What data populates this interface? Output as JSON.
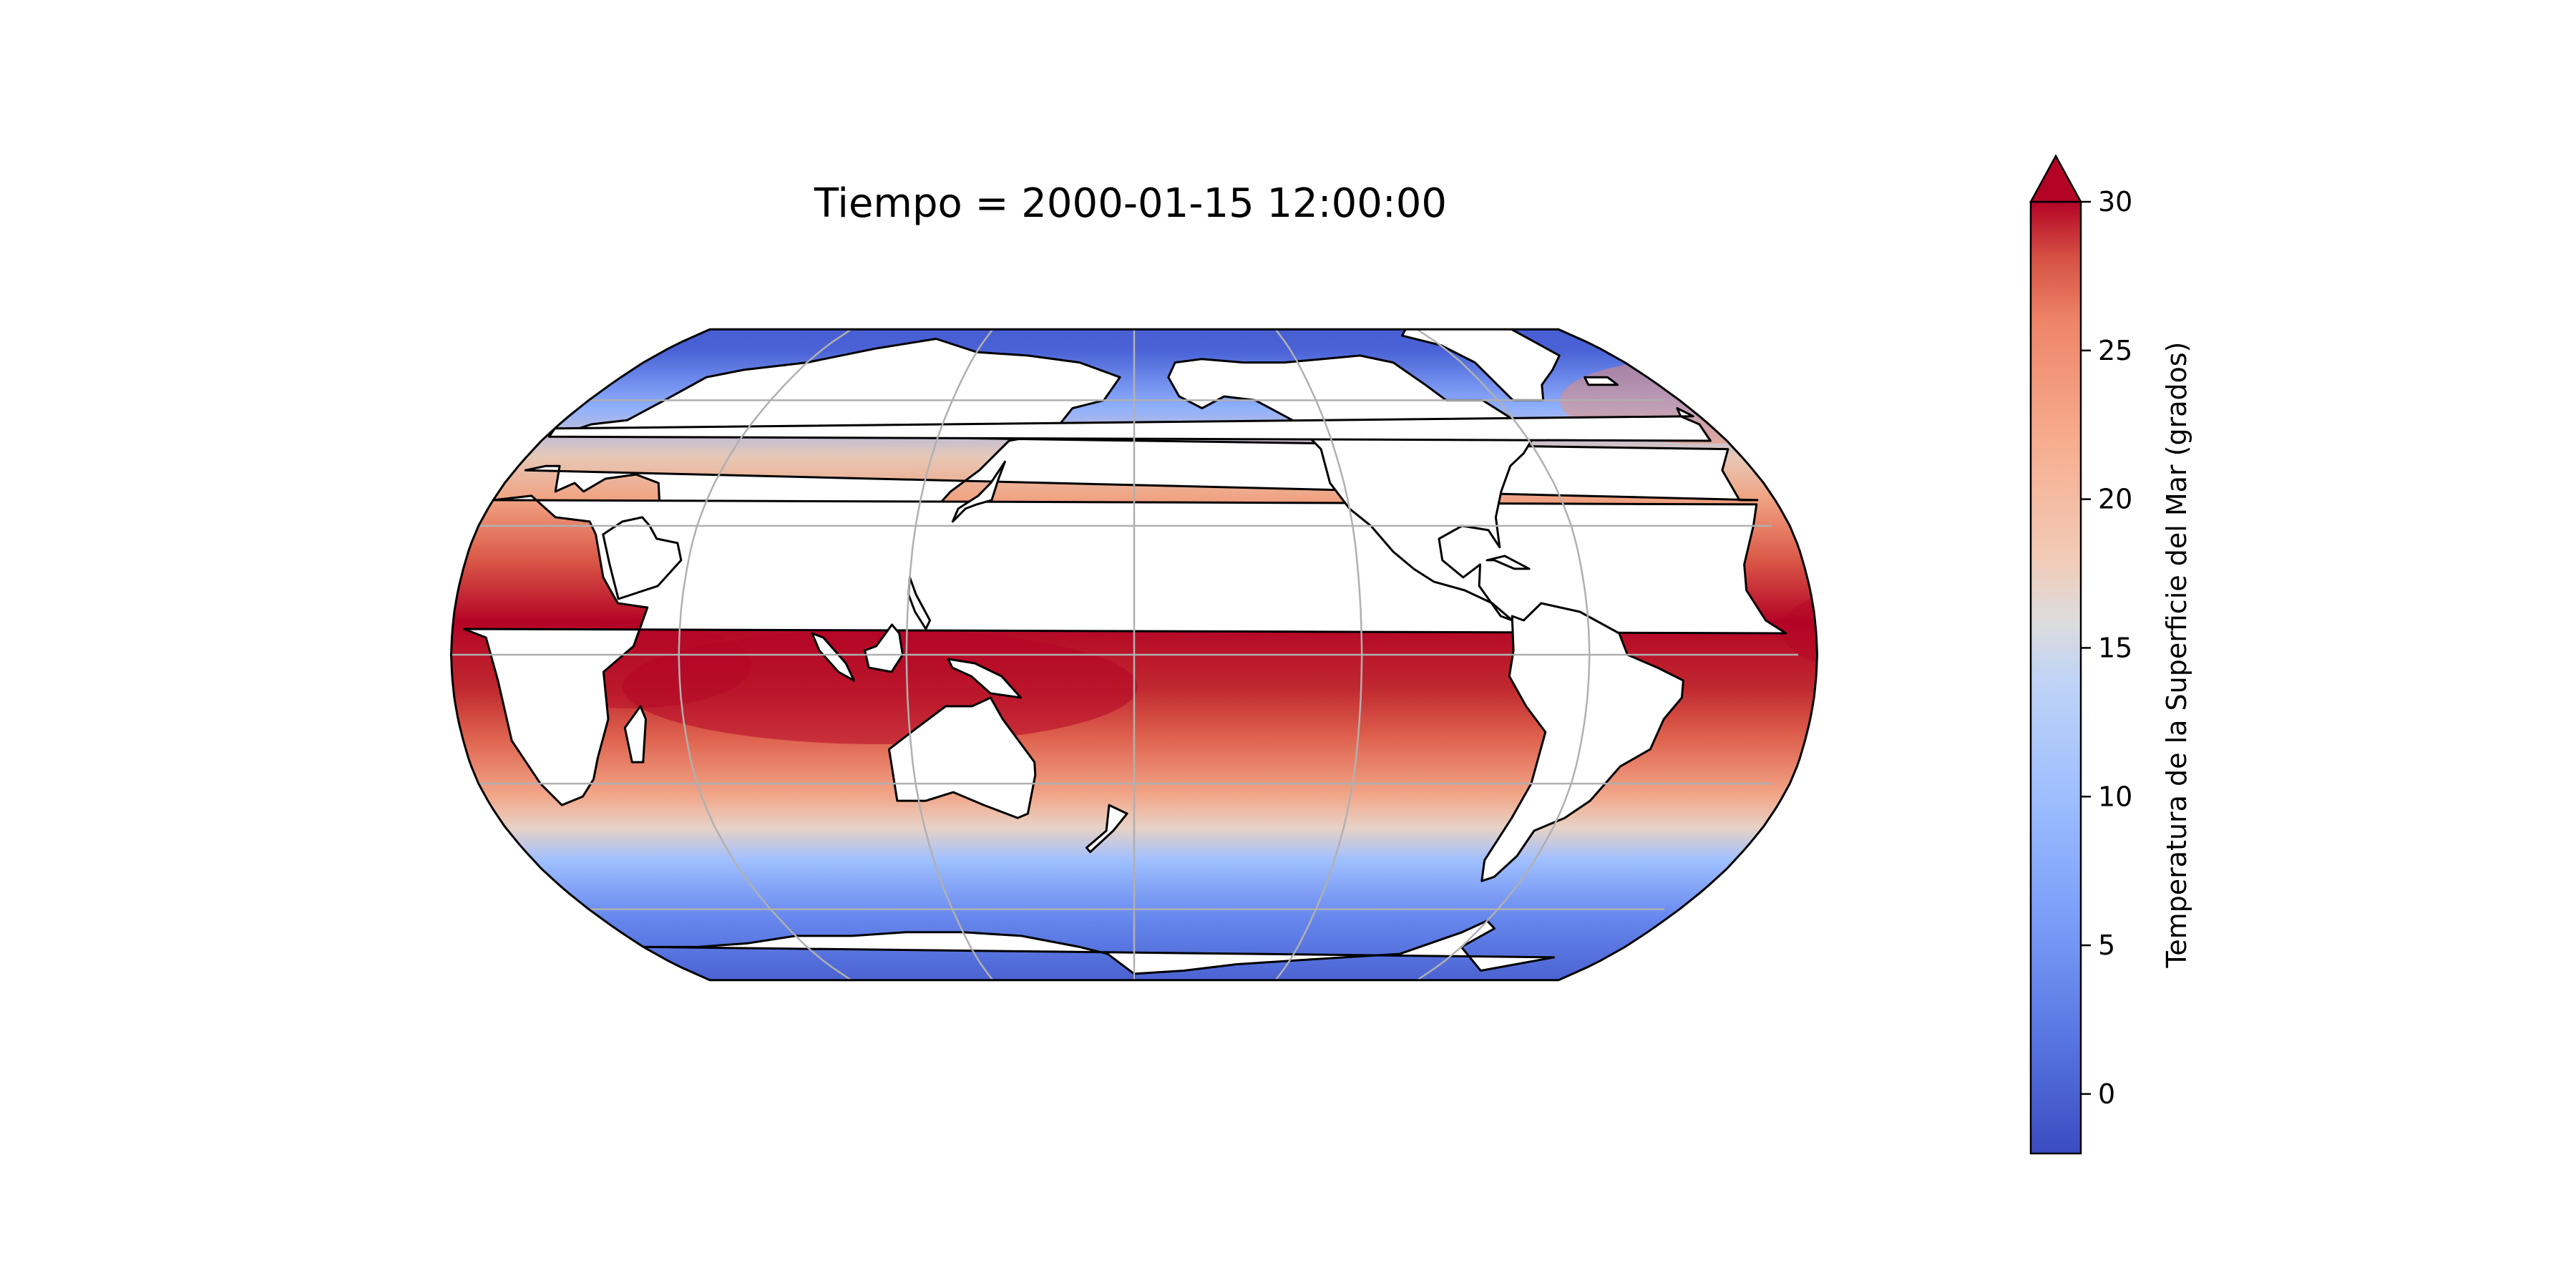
{
  "map": {
    "title": "Tiempo = 2000-01-15 12:00:00",
    "projection": "Robinson",
    "central_longitude": 180,
    "gridlines": true,
    "coastlines": true,
    "variable": "sea surface temperature",
    "colormap": "coolwarm"
  },
  "colorbar": {
    "label": "Temperatura de la Superficie del Mar (grados)",
    "vmin": -2,
    "vmax": 30,
    "extend": "max",
    "ticks": [
      0,
      5,
      10,
      15,
      20,
      25,
      30
    ],
    "tick_labels": [
      "0",
      "5",
      "10",
      "15",
      "20",
      "25",
      "30"
    ],
    "colors": [
      "#3b4cc0",
      "#6a8bef",
      "#9abbff",
      "#c9d7f0",
      "#dddcdc",
      "#f3c7b1",
      "#f39d7b",
      "#d95847",
      "#b40426"
    ]
  },
  "colors": {
    "land": "#ffffff",
    "coastline": "#000000",
    "gridline": "#b0b0b0",
    "frame": "#000000"
  }
}
